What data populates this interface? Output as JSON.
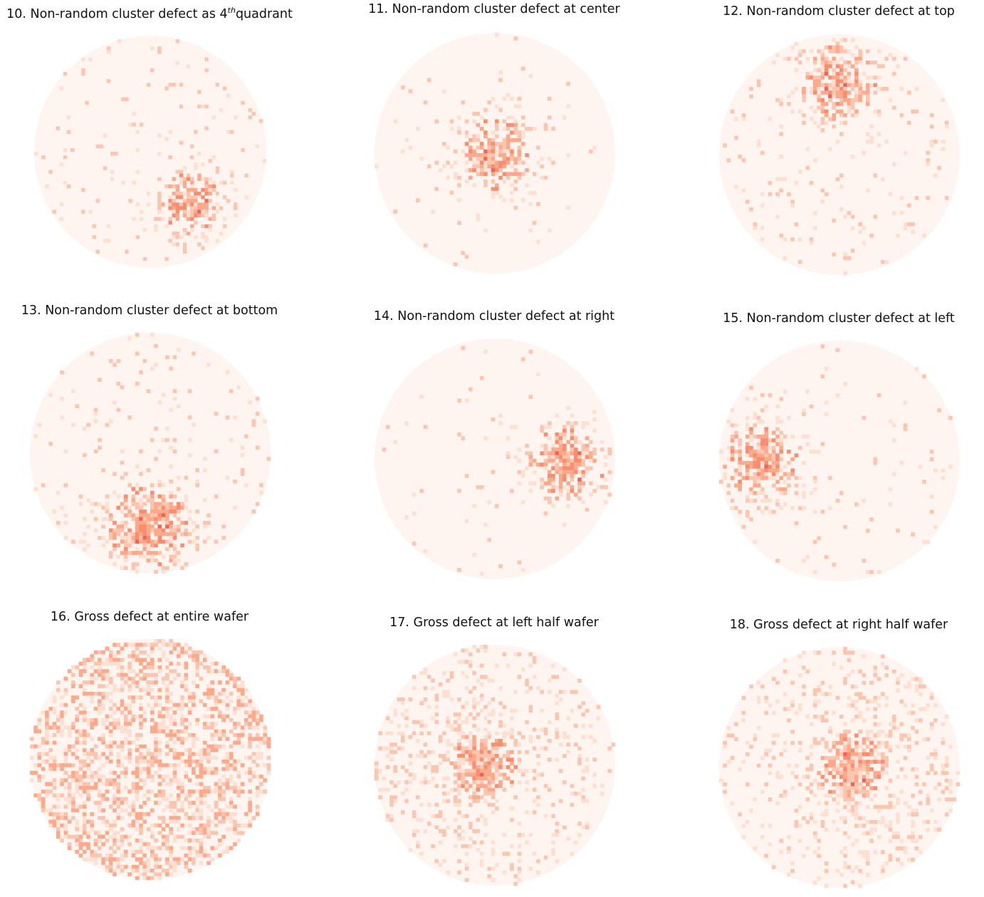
{
  "chart_data": [
    {
      "type": "heatmap",
      "title": "10. Non-random cluster defect as 4",
      "title_sup": "th",
      "title_suffix": "quadrant",
      "pattern": "cluster",
      "cluster": [
        0.35,
        0.45
      ],
      "spread": 0.17,
      "background_density": 0.04,
      "colormap": "Reds",
      "grid": false,
      "axes": "off"
    },
    {
      "type": "heatmap",
      "title": "11. Non-random cluster defect at center",
      "title_sup": "",
      "title_suffix": "",
      "pattern": "cluster",
      "cluster": [
        0.0,
        0.0
      ],
      "spread": 0.2,
      "background_density": 0.02,
      "colormap": "Reds",
      "grid": false,
      "axes": "off"
    },
    {
      "type": "heatmap",
      "title": "12. Non-random cluster defect at top",
      "title_sup": "",
      "title_suffix": "",
      "pattern": "cluster",
      "cluster": [
        0.0,
        -0.6
      ],
      "spread": 0.2,
      "background_density": 0.05,
      "colormap": "Reds",
      "grid": false,
      "axes": "off"
    },
    {
      "type": "heatmap",
      "title": "13. Non-random cluster defect at bottom",
      "title_sup": "",
      "title_suffix": "",
      "pattern": "cluster",
      "cluster": [
        0.0,
        0.6
      ],
      "spread": 0.22,
      "background_density": 0.05,
      "colormap": "Reds",
      "grid": false,
      "axes": "off"
    },
    {
      "type": "heatmap",
      "title": "14. Non-random cluster defect at right",
      "title_sup": "",
      "title_suffix": "",
      "pattern": "cluster",
      "cluster": [
        0.6,
        0.05
      ],
      "spread": 0.2,
      "background_density": 0.02,
      "colormap": "Reds",
      "grid": false,
      "axes": "off"
    },
    {
      "type": "heatmap",
      "title": "15. Non-random cluster defect at left",
      "title_sup": "",
      "title_suffix": "",
      "pattern": "cluster",
      "cluster": [
        -0.65,
        0.0
      ],
      "spread": 0.2,
      "background_density": 0.03,
      "colormap": "Reds",
      "grid": false,
      "axes": "off"
    },
    {
      "type": "heatmap",
      "title": "16. Gross defect at entire wafer",
      "title_sup": "",
      "title_suffix": "",
      "pattern": "gross",
      "cluster": [
        0.0,
        0.0
      ],
      "spread": 0.0,
      "background_density": 0.45,
      "colormap": "Reds",
      "grid": false,
      "axes": "off"
    },
    {
      "type": "heatmap",
      "title": "17. Gross defect at left half wafer",
      "title_sup": "",
      "title_suffix": "",
      "pattern": "gross-left",
      "cluster": [
        -0.1,
        0.0
      ],
      "spread": 0.18,
      "background_density": 0.12,
      "colormap": "Reds",
      "grid": false,
      "axes": "off"
    },
    {
      "type": "heatmap",
      "title": "18. Gross defect at right half wafer",
      "title_sup": "",
      "title_suffix": "",
      "pattern": "gross-right",
      "cluster": [
        0.1,
        0.0
      ],
      "spread": 0.18,
      "background_density": 0.12,
      "colormap": "Reds",
      "grid": false,
      "axes": "off"
    }
  ]
}
